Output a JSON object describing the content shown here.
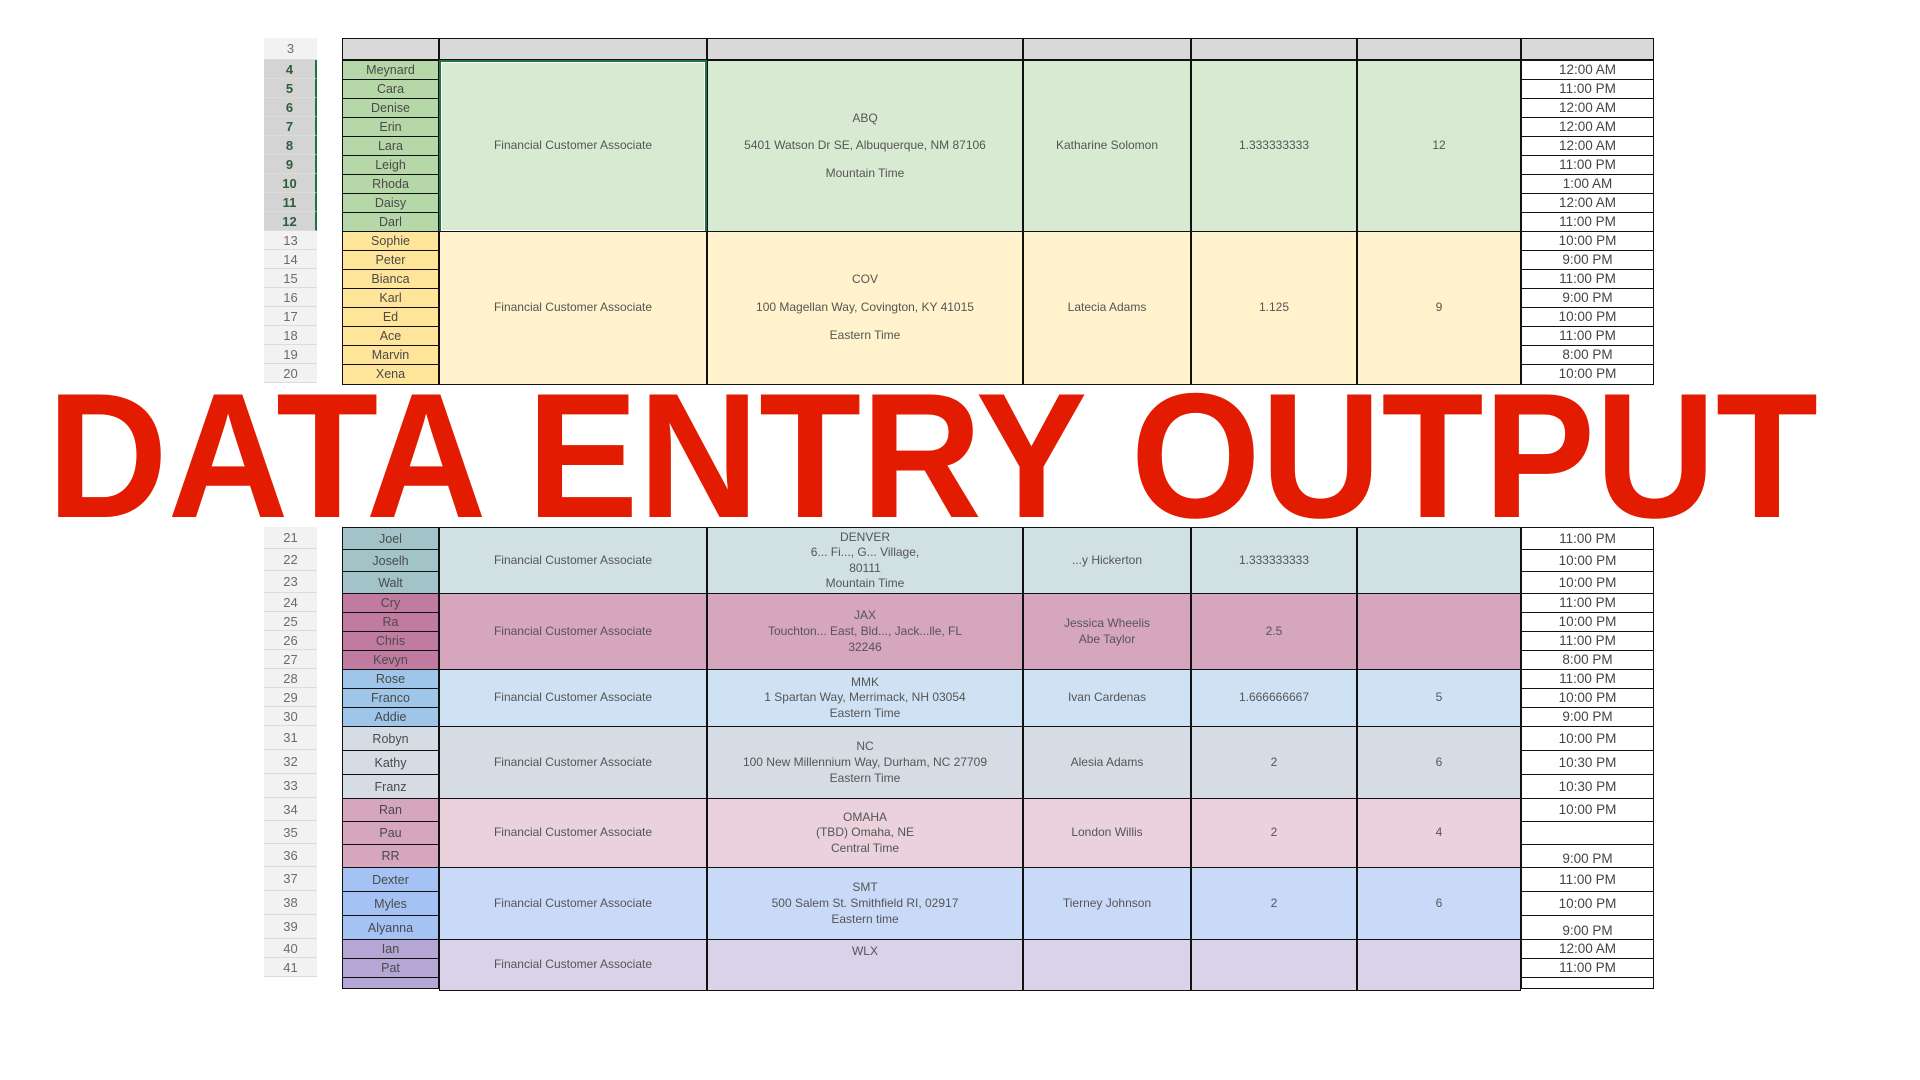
{
  "header_row_number": "3",
  "job_title": "Financial Customer Associate",
  "groups": [
    {
      "start_row": 4,
      "selected": true,
      "name_color": "#b6d7a8",
      "cell_color": "#d9ead3",
      "names": [
        "Meynard",
        "Cara",
        "Denise",
        "Erin",
        "Lara",
        "Leigh",
        "Rhoda",
        "Daisy",
        "Darl"
      ],
      "times": [
        "12:00 AM",
        "11:00 PM",
        "12:00 AM",
        "12:00 AM",
        "12:00 AM",
        "11:00 PM",
        "1:00 AM",
        "12:00 AM",
        "11:00 PM"
      ],
      "location": [
        "ABQ",
        "5401 Watson Dr SE, Albuquerque, NM 87106",
        "Mountain Time"
      ],
      "spaced": true,
      "consultant": [
        "Katharine Solomon"
      ],
      "ratio": "1.333333333",
      "count": "12"
    },
    {
      "start_row": 13,
      "name_color": "#ffe599",
      "cell_color": "#fff2cc",
      "names": [
        "Sophie",
        "Peter",
        "Bianca",
        "Karl",
        "Ed",
        "Ace",
        "Marvin",
        "Xena"
      ],
      "times": [
        "10:00 PM",
        "9:00 PM",
        "11:00 PM",
        "9:00 PM",
        "10:00 PM",
        "11:00 PM",
        "8:00 PM",
        "10:00 PM"
      ],
      "location": [
        "COV",
        "100 Magellan Way, Covington, KY 41015",
        "Eastern Time"
      ],
      "spaced": true,
      "consultant": [
        "Latecia Adams"
      ],
      "ratio": "1.125",
      "count": "9"
    },
    {
      "start_row": 21,
      "name_color": "#a2c4c9",
      "cell_color": "#d0e0e3",
      "names": [
        "Joel",
        "Joselh",
        "Walt"
      ],
      "times": [
        "11:00 PM",
        "10:00 PM",
        "10:00 PM"
      ],
      "location": [
        "DENVER",
        "6... Fi..., G... Village,",
        "80111",
        "Mountain Time"
      ],
      "consultant": [
        "...y Hickerton"
      ],
      "ratio": "1.333333333",
      "count": ""
    },
    {
      "start_row": 24,
      "name_color": "#c27ba0",
      "cell_color": "#d5a6bd",
      "names": [
        "Cry",
        "Ra",
        "Chris",
        "Kevyn"
      ],
      "times": [
        "11:00 PM",
        "10:00 PM",
        "11:00 PM",
        "8:00 PM"
      ],
      "location": [
        "JAX",
        "Touchton... East, Bld..., Jack...lle, FL",
        "32246"
      ],
      "consultant": [
        "Jessica Wheelis",
        "Abe Taylor"
      ],
      "ratio": "2.5",
      "count": ""
    },
    {
      "start_row": 28,
      "name_color": "#9fc5e8",
      "cell_color": "#cfe2f3",
      "names": [
        "Rose",
        "Franco",
        "Addie"
      ],
      "times": [
        "11:00 PM",
        "10:00 PM",
        "9:00 PM"
      ],
      "location": [
        "MMK",
        "1 Spartan Way, Merrimack, NH 03054",
        "Eastern Time"
      ],
      "consultant": [
        "Ivan Cardenas"
      ],
      "ratio": "1.666666667",
      "count": "5"
    },
    {
      "start_row": 31,
      "name_color": "#d6dce4",
      "cell_color": "#d6dce4",
      "names": [
        "Robyn",
        "Kathy",
        "Franz"
      ],
      "times": [
        "10:00 PM",
        "10:30 PM",
        "10:30 PM"
      ],
      "location": [
        "NC",
        "100 New Millennium Way, Durham, NC 27709",
        "Eastern Time"
      ],
      "consultant": [
        "Alesia Adams"
      ],
      "ratio": "2",
      "count": "6"
    },
    {
      "start_row": 34,
      "name_color": "#d5a6bd",
      "cell_color": "#ead1dc",
      "names": [
        "Ran",
        "Pau",
        "RR"
      ],
      "times": [
        "10:00 PM",
        "",
        "9:00 PM"
      ],
      "location": [
        "OMAHA",
        "(TBD) Omaha, NE",
        "Central Time"
      ],
      "consultant": [
        "London Willis"
      ],
      "ratio": "2",
      "count": "4"
    },
    {
      "start_row": 37,
      "name_color": "#a4c2f4",
      "cell_color": "#c9daf8",
      "names": [
        "Dexter",
        "Myles",
        "Alyanna"
      ],
      "times": [
        "11:00 PM",
        "10:00 PM",
        "9:00 PM"
      ],
      "location": [
        "SMT",
        "500 Salem St. Smithfield RI, 02917",
        "Eastern time"
      ],
      "consultant": [
        "Tierney Johnson"
      ],
      "ratio": "2",
      "count": "6"
    },
    {
      "start_row": 40,
      "name_color": "#b4a7d6",
      "cell_color": "#d9d2e9",
      "names": [
        "Ian",
        "Pat"
      ],
      "times": [
        "12:00 AM",
        "11:00 PM"
      ],
      "location": [
        "WLX"
      ],
      "consultant": [
        ""
      ],
      "ratio": "",
      "count": ""
    }
  ],
  "watermark": {
    "text": "DATA ENTRY OUTPUT",
    "color": "#e31b00"
  }
}
